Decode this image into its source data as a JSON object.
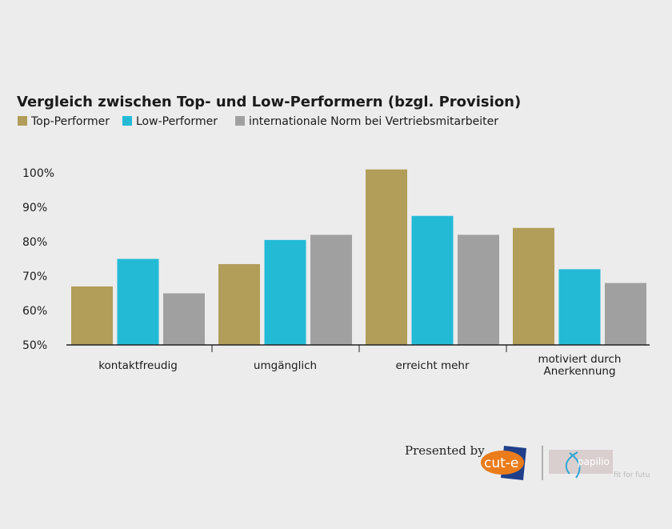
{
  "chart_data": {
    "type": "bar",
    "title": "Vergleich zwischen Top- und Low-Performern (bzgl. Provision)",
    "xlabel": "",
    "ylabel": "",
    "ylim": [
      50,
      100
    ],
    "yticks": [
      "50%",
      "60%",
      "70%",
      "80%",
      "90%",
      "100%"
    ],
    "grid": false,
    "legend_position": "top-left",
    "categories": [
      [
        "kontaktfreudig"
      ],
      [
        "umgänglich"
      ],
      [
        "erreicht mehr"
      ],
      [
        "motiviert durch",
        "Anerkennung"
      ]
    ],
    "series": [
      {
        "name": "Top-Performer",
        "color": "#b29d59",
        "values": [
          67,
          73.5,
          101,
          84
        ]
      },
      {
        "name": "Low-Performer",
        "color": "#23bad6",
        "values": [
          75,
          80.5,
          87.5,
          72
        ]
      },
      {
        "name": "internationale Norm bei Vertriebsmitarbeiter",
        "color": "#a0a0a0",
        "values": [
          65,
          82,
          82,
          68
        ]
      }
    ]
  },
  "footer": {
    "presented_by": "Presented by",
    "logo1_text": "cut-e",
    "logo2_text": "papilio",
    "logo2_tagline": "fit for futu"
  }
}
